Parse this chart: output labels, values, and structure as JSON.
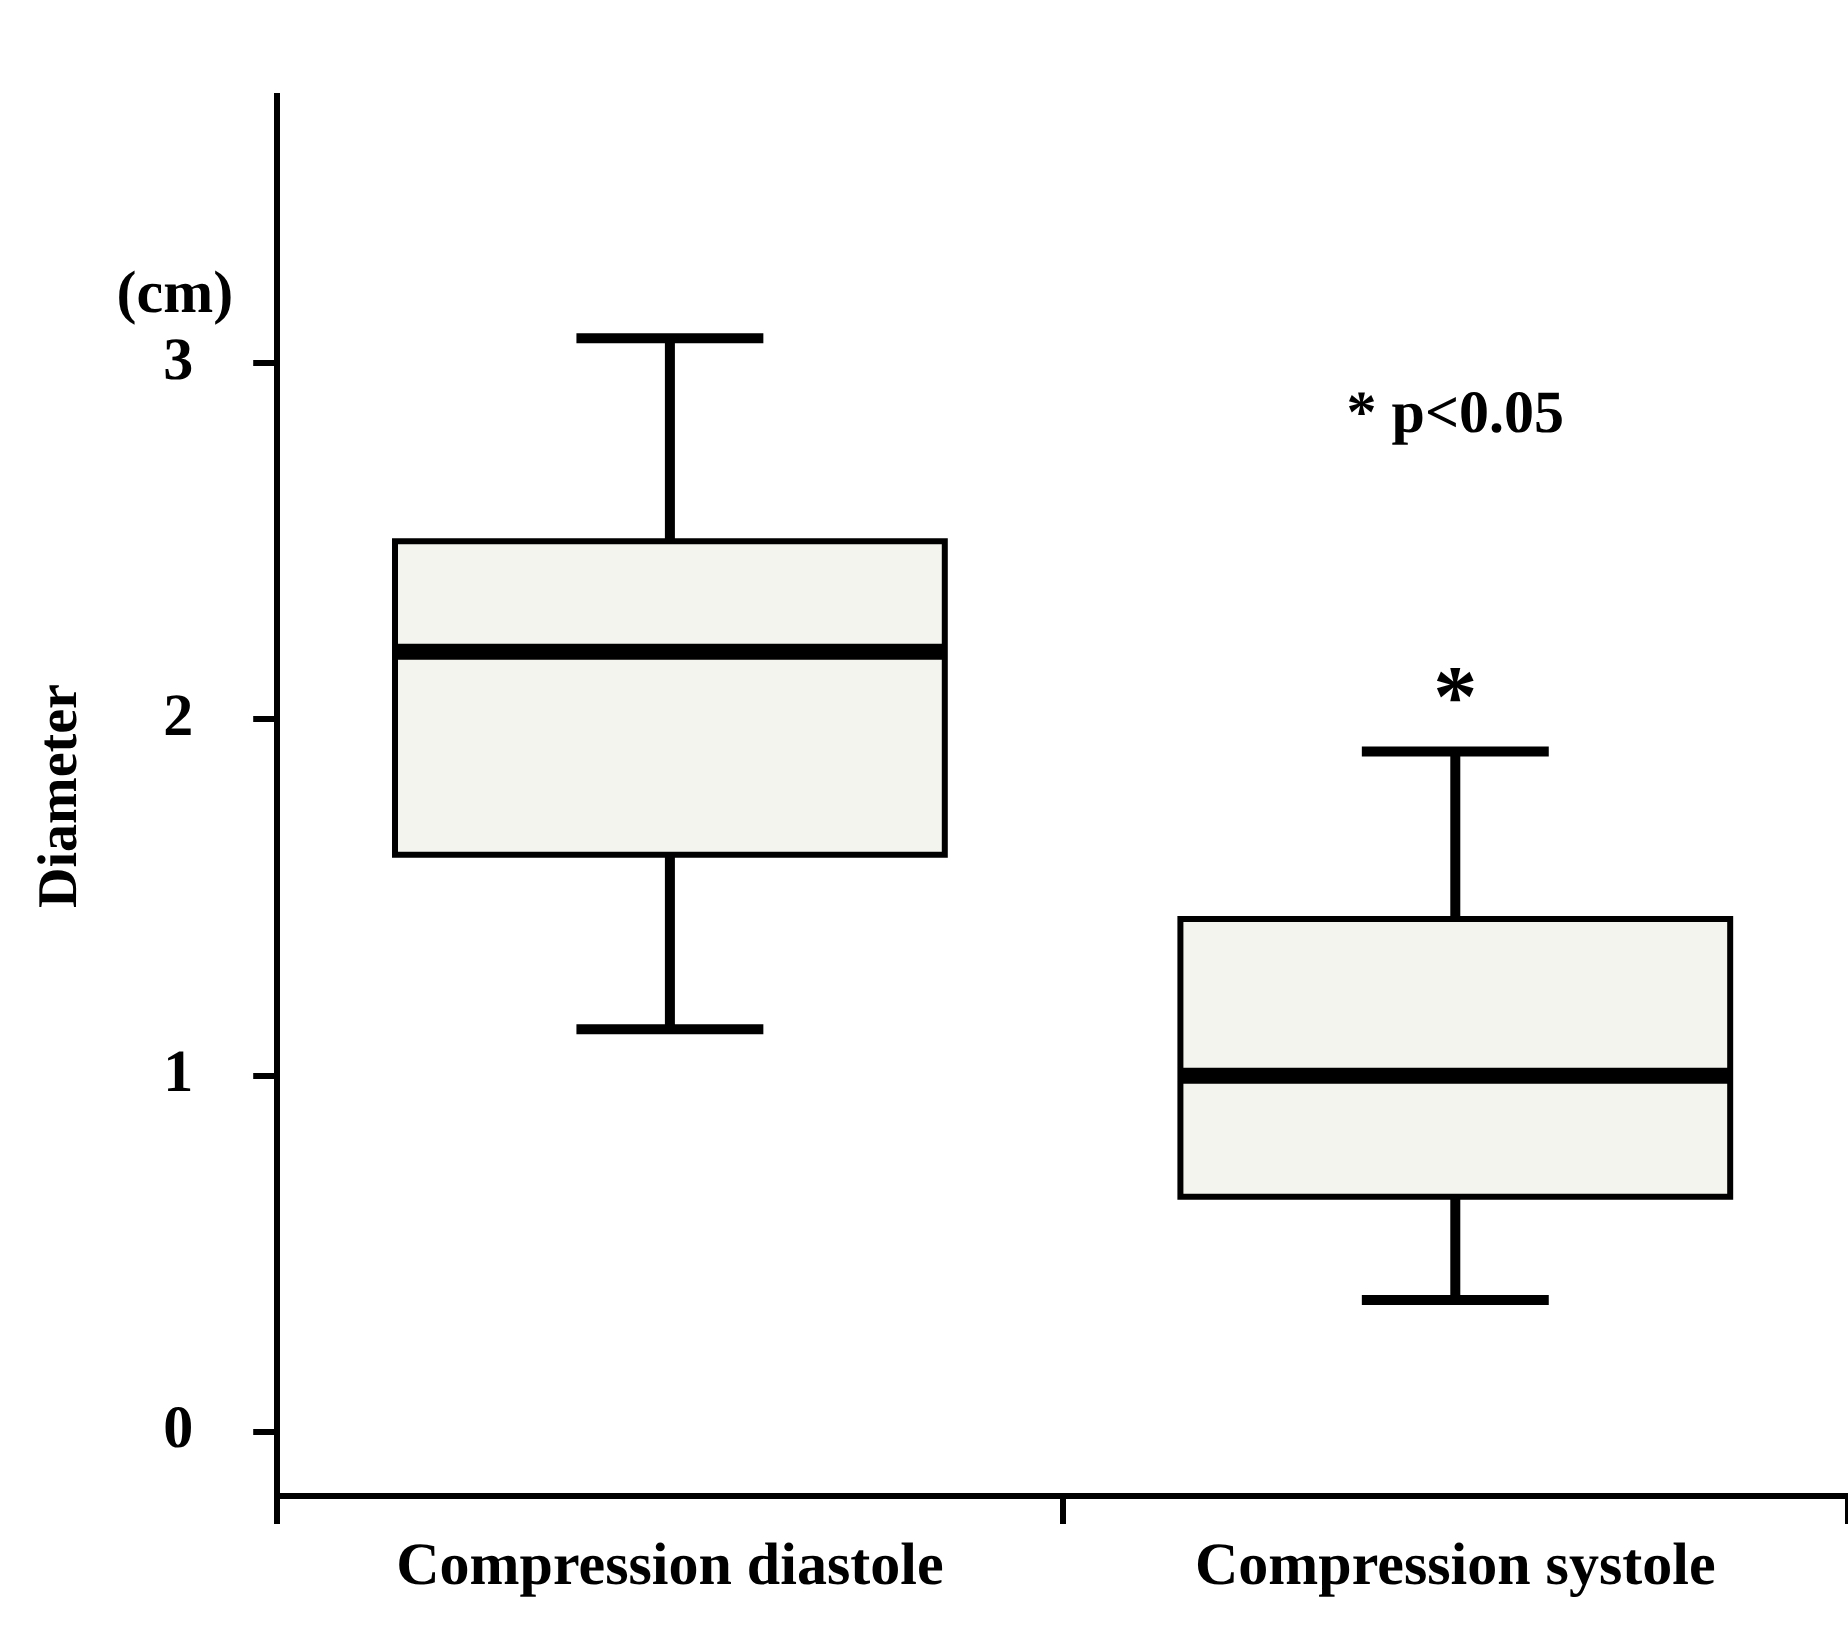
{
  "chart_data": {
    "type": "box",
    "ylabel": "Diameter",
    "categories": [
      "Compression diastole",
      "Compression systole"
    ],
    "boxes": [
      {
        "low": 1.13,
        "q1": 1.62,
        "median": 2.19,
        "q3": 2.5,
        "high": 3.07
      },
      {
        "low": 0.37,
        "q1": 0.66,
        "median": 1.0,
        "q3": 1.44,
        "high": 1.91
      }
    ],
    "color": "#f4f4ef",
    "ylim": [
      -0.18,
      3.75
    ],
    "yticks": [
      0,
      1,
      2,
      3
    ],
    "grid": false,
    "legend": false,
    "annotations": [
      "(cm)",
      "* p<0.05",
      "*"
    ]
  }
}
